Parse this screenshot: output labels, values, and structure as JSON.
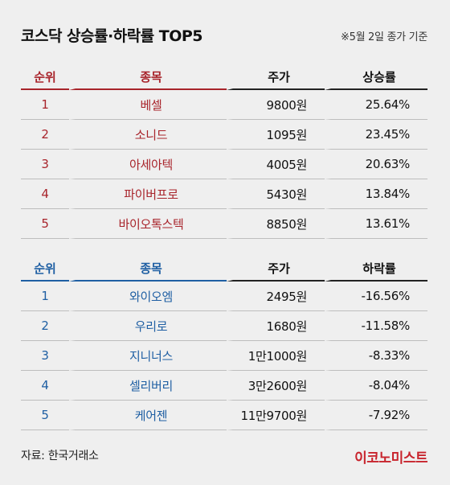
{
  "header": {
    "title": "코스닥 상승률·하락률 TOP5",
    "date_note": "※5월 2일 종가 기준"
  },
  "gainers": {
    "columns": [
      "순위",
      "종목",
      "주가",
      "상승률"
    ],
    "rows": [
      {
        "rank": "1",
        "name": "베셀",
        "price": "9800원",
        "rate": "25.64%"
      },
      {
        "rank": "2",
        "name": "소니드",
        "price": "1095원",
        "rate": "23.45%"
      },
      {
        "rank": "3",
        "name": "아세아텍",
        "price": "4005원",
        "rate": "20.63%"
      },
      {
        "rank": "4",
        "name": "파이버프로",
        "price": "5430원",
        "rate": "13.84%"
      },
      {
        "rank": "5",
        "name": "바이오톡스텍",
        "price": "8850원",
        "rate": "13.61%"
      }
    ]
  },
  "losers": {
    "columns": [
      "순위",
      "종목",
      "주가",
      "하락률"
    ],
    "rows": [
      {
        "rank": "1",
        "name": "와이오엠",
        "price": "2495원",
        "rate": "-16.56%"
      },
      {
        "rank": "2",
        "name": "우리로",
        "price": "1680원",
        "rate": "-11.58%"
      },
      {
        "rank": "3",
        "name": "지니너스",
        "price": "1만1000원",
        "rate": "-8.33%"
      },
      {
        "rank": "4",
        "name": "셀리버리",
        "price": "3만2600원",
        "rate": "-8.04%"
      },
      {
        "rank": "5",
        "name": "케어젠",
        "price": "11만9700원",
        "rate": "-7.92%"
      }
    ]
  },
  "footer": {
    "source": "자료: 한국거래소",
    "brand": "이코노미스트"
  },
  "colors": {
    "gain": "#a8242b",
    "loss": "#1f5fa3",
    "brand": "#c8242d"
  }
}
